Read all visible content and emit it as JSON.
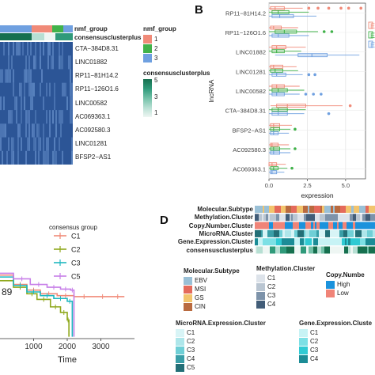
{
  "panel_letters": {
    "b": "B",
    "d": "D"
  },
  "colors": {
    "heat_dark": "#2c5596",
    "heat_light": "#5b84c0",
    "nmf": [
      "#f08a78",
      "#41b24a",
      "#6fa0e0"
    ],
    "consensus": [
      "#eef6f3",
      "#b7dfd3",
      "#73c1a8",
      "#2f9a7a",
      "#16704f"
    ],
    "surv": [
      "#f08a78",
      "#8fa81c",
      "#1fb8c0",
      "#c77fe8"
    ],
    "box": [
      "#f08a78",
      "#41b24a",
      "#6fa0e0"
    ],
    "mol": [
      "#9ac0d6",
      "#e46a5b",
      "#f2c46d",
      "#b96a3f"
    ],
    "methyl": [
      "#dde3ea",
      "#bac6d2",
      "#7d93aa",
      "#425d78"
    ],
    "copy": [
      "#1b92dc",
      "#f08478"
    ],
    "mirna": [
      "#d8f4f6",
      "#aee6ea",
      "#6fcfd6",
      "#3a9fa8",
      "#236f77"
    ],
    "gene": [
      "#c7f3f5",
      "#7ce0e5",
      "#2fcad3",
      "#1b8c96"
    ]
  },
  "panel_a": {
    "heatmap_rows": [
      "CTA−384D8.31",
      "LINC01882",
      "RP11−81H14.2",
      "RP11−126O1.6",
      "LINC00582",
      "AC069363.1",
      "AC092580.3",
      "LINC01281",
      "BFSP2−AS1"
    ],
    "annotation_labels": [
      "nmf_group",
      "consensusclusterplus"
    ],
    "legend_nmf": {
      "title": "nmf_group",
      "items": [
        "1",
        "2",
        "3"
      ]
    },
    "legend_consensus": {
      "title": "consensusclusterplus",
      "ticks": [
        "5",
        "3",
        "1"
      ]
    }
  },
  "panel_c": {
    "legend_title": "consensus group",
    "legend_items": [
      "C1",
      "C2",
      "C3",
      "C5"
    ],
    "pvalue_fragment": "89"
  },
  "panel_d": {
    "track_labels": [
      "Molecular.Subtype",
      "Methylation.Cluster",
      "Copy.Number.Cluster",
      "MicroRNA.Cluster",
      "Gene.Expression.Cluster",
      "consensusclusterplus"
    ],
    "legends": {
      "molecular": {
        "title": "Molecular.Subtype",
        "items": [
          "EBV",
          "MSI",
          "GS",
          "CIN"
        ]
      },
      "methylation": {
        "title": "Methylation.Cluster",
        "items": [
          "C1",
          "C2",
          "C3",
          "C4"
        ]
      },
      "copy": {
        "title": "Copy.Numbe",
        "items": [
          "High",
          "Low"
        ]
      },
      "mirna": {
        "title": "MicroRNA.Expression.Cluster",
        "items": [
          "C1",
          "C2",
          "C3",
          "C4",
          "C5"
        ]
      },
      "gene": {
        "title": "Gene.Expression.Cluste",
        "items": [
          "C1",
          "C2",
          "C3",
          "C4"
        ]
      }
    }
  },
  "chart_data": [
    {
      "type": "box",
      "panel": "B",
      "xlabel": "expression",
      "ylabel": "lncRNA",
      "xlim": [
        0,
        6.3
      ],
      "xticks": [
        "0.0",
        "2.5",
        "5.0"
      ],
      "categories": [
        "RP11−81H14.2",
        "RP11−126O1.6",
        "LINC01882",
        "LINC01281",
        "LINC00582",
        "CTA−384D8.31",
        "BFSP2−AS1",
        "AC092580.3",
        "AC069363.1"
      ],
      "legend_entries": [
        "E",
        "E",
        "E"
      ],
      "series": [
        {
          "color_index": 0,
          "boxes": [
            [
              0.0,
              0.1,
              0.4,
              1.0,
              2.2
            ],
            [
              0.0,
              0.1,
              0.3,
              0.8,
              1.9
            ],
            [
              0.0,
              0.2,
              0.5,
              1.1,
              2.4
            ],
            [
              0.0,
              0.1,
              0.3,
              0.9,
              1.8
            ],
            [
              0.0,
              0.2,
              0.5,
              1.0,
              2.0
            ],
            [
              0.1,
              0.5,
              1.2,
              2.4,
              4.8
            ],
            [
              0.0,
              0.1,
              0.3,
              0.7,
              1.5
            ],
            [
              0.0,
              0.1,
              0.2,
              0.6,
              1.3
            ],
            [
              0.0,
              0.0,
              0.2,
              0.5,
              1.1
            ]
          ]
        },
        {
          "color_index": 1,
          "boxes": [
            [
              0.0,
              0.2,
              0.6,
              1.3,
              2.6
            ],
            [
              0.0,
              0.4,
              1.0,
              1.8,
              3.2
            ],
            [
              0.0,
              0.2,
              0.5,
              1.0,
              2.1
            ],
            [
              0.0,
              0.1,
              0.4,
              0.9,
              1.9
            ],
            [
              0.0,
              0.2,
              0.6,
              1.2,
              2.3
            ],
            [
              0.0,
              0.2,
              0.6,
              1.2,
              2.4
            ],
            [
              0.0,
              0.1,
              0.3,
              0.7,
              1.4
            ],
            [
              0.0,
              0.1,
              0.3,
              0.7,
              1.4
            ],
            [
              0.0,
              0.1,
              0.3,
              0.6,
              1.2
            ]
          ]
        },
        {
          "color_index": 2,
          "boxes": [
            [
              0.0,
              0.2,
              0.7,
              1.6,
              3.1
            ],
            [
              0.0,
              0.2,
              0.6,
              1.3,
              2.6
            ],
            [
              0.4,
              1.9,
              2.8,
              3.8,
              5.9
            ],
            [
              0.0,
              0.2,
              0.5,
              1.1,
              2.2
            ],
            [
              0.0,
              0.2,
              0.5,
              1.0,
              2.0
            ],
            [
              0.0,
              0.2,
              0.6,
              1.2,
              2.3
            ],
            [
              0.0,
              0.1,
              0.3,
              0.6,
              1.3
            ],
            [
              0.0,
              0.1,
              0.3,
              0.7,
              1.4
            ],
            [
              0.0,
              0.1,
              0.2,
              0.5,
              1.0
            ]
          ]
        }
      ],
      "outliers": [
        {
          "category": 0,
          "series": 0,
          "values": [
            2.6,
            3.2,
            3.9,
            4.7,
            5.2,
            6.0
          ]
        },
        {
          "category": 1,
          "series": 1,
          "values": [
            3.6,
            4.1
          ]
        },
        {
          "category": 3,
          "series": 2,
          "values": [
            2.6,
            3.0
          ]
        },
        {
          "category": 4,
          "series": 2,
          "values": [
            2.4,
            2.9,
            3.4
          ]
        },
        {
          "category": 5,
          "series": 0,
          "values": [
            5.3
          ]
        },
        {
          "category": 5,
          "series": 2,
          "values": [
            3.9
          ]
        },
        {
          "category": 6,
          "series": 1,
          "values": [
            1.7
          ]
        },
        {
          "category": 7,
          "series": 1,
          "values": [
            1.7
          ]
        },
        {
          "category": 8,
          "series": 1,
          "values": [
            1.5
          ]
        }
      ]
    },
    {
      "type": "line",
      "panel": "C",
      "xlabel": "Time",
      "xlim": [
        0,
        4000
      ],
      "xticks": [
        "1000",
        "2000",
        "3000"
      ],
      "xtick_values": [
        1000,
        2000,
        3000
      ],
      "ylim": [
        0,
        1
      ],
      "series": [
        {
          "name": "C1",
          "x": [
            0,
            400,
            800,
            1200,
            1700,
            2200,
            2800,
            3300,
            3700
          ],
          "y": [
            0.68,
            0.58,
            0.52,
            0.48,
            0.46,
            0.45,
            0.45,
            0.45,
            0.45
          ]
        },
        {
          "name": "C2",
          "x": [
            0,
            400,
            800,
            1100,
            1500,
            1800,
            2000,
            2050
          ],
          "y": [
            0.62,
            0.55,
            0.48,
            0.42,
            0.34,
            0.28,
            0.2,
            0.02
          ]
        },
        {
          "name": "C3",
          "x": [
            0,
            400,
            800,
            1200,
            1600,
            2000,
            2150
          ],
          "y": [
            0.66,
            0.57,
            0.5,
            0.46,
            0.43,
            0.4,
            0.02
          ]
        },
        {
          "name": "C5",
          "x": [
            0,
            400,
            900,
            1400,
            1800,
            2100,
            2200
          ],
          "y": [
            0.7,
            0.64,
            0.58,
            0.55,
            0.53,
            0.52,
            0.02
          ]
        }
      ]
    }
  ]
}
